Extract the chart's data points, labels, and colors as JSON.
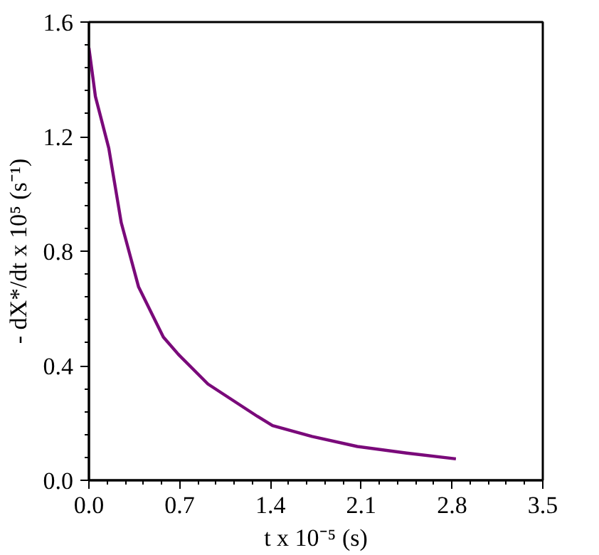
{
  "chart_data": {
    "type": "line",
    "xlabel": "t x 10⁻⁵ (s)",
    "ylabel": "- dX*/dt x 10⁵ (s⁻¹)",
    "series": [
      {
        "color": "#7a0a7a",
        "x": [
          0,
          0.05,
          0.153,
          0.249,
          0.383,
          0.574,
          0.689,
          0.918,
          1.3,
          1.416,
          1.72,
          2.07,
          2.45,
          2.83
        ],
        "values": [
          1.51,
          1.34,
          1.16,
          0.9,
          0.675,
          0.5,
          0.44,
          0.336,
          0.223,
          0.191,
          0.153,
          0.118,
          0.095,
          0.075
        ]
      }
    ],
    "xlim": [
      0,
      3.5
    ],
    "ylim": [
      0,
      1.6
    ],
    "xticks": [
      {
        "value": 0,
        "label": "0.0"
      },
      0.7,
      1.4,
      2.1,
      2.8,
      3.5
    ],
    "yticks": [
      {
        "value": 0,
        "label": "0.0"
      },
      0.4,
      0.8,
      1.2,
      1.6
    ],
    "grid": false,
    "marker": "none",
    "line_style": "solid"
  }
}
